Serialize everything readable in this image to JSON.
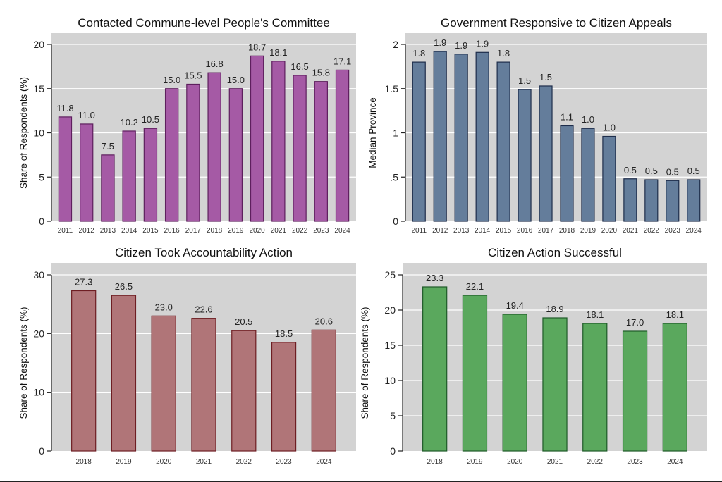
{
  "chart_data": [
    {
      "id": "commune",
      "type": "bar",
      "title": "Contacted Commune-level People's Committee",
      "xlabel": "",
      "ylabel": "Share of Respondents (%)",
      "ylim": [
        0,
        20
      ],
      "yticks": [
        0,
        5,
        10,
        15,
        20
      ],
      "ytick_labels": [
        "0",
        "5",
        "10",
        "15",
        "20"
      ],
      "grid": true,
      "categories": [
        "2011",
        "2012",
        "2013",
        "2014",
        "2015",
        "2016",
        "2017",
        "2018",
        "2019",
        "2020",
        "2021",
        "2022",
        "2023",
        "2024"
      ],
      "values": [
        11.8,
        11.0,
        7.5,
        10.2,
        10.5,
        15.0,
        15.5,
        16.8,
        15.0,
        18.7,
        18.1,
        16.5,
        15.8,
        17.1
      ],
      "value_labels": [
        "11.8",
        "11.0",
        "7.5",
        "10.2",
        "10.5",
        "15.0",
        "15.5",
        "16.8",
        "15.0",
        "18.7",
        "18.1",
        "16.5",
        "15.8",
        "17.1"
      ],
      "fill": "#a55aa5",
      "stroke": "#5e1f5e"
    },
    {
      "id": "responsive",
      "type": "bar",
      "title": "Government Responsive to Citizen Appeals",
      "xlabel": "",
      "ylabel": "Median Province",
      "ylim": [
        0,
        2
      ],
      "yticks": [
        0,
        0.5,
        1,
        1.5,
        2
      ],
      "ytick_labels": [
        "0",
        ".5",
        "1",
        "1.5",
        "2"
      ],
      "grid": true,
      "categories": [
        "2011",
        "2012",
        "2013",
        "2014",
        "2015",
        "2016",
        "2017",
        "2018",
        "2019",
        "2020",
        "2021",
        "2022",
        "2023",
        "2024"
      ],
      "values": [
        1.8,
        1.92,
        1.89,
        1.91,
        1.8,
        1.49,
        1.53,
        1.08,
        1.05,
        0.96,
        0.48,
        0.47,
        0.46,
        0.47
      ],
      "value_labels": [
        "1.8",
        "1.9",
        "1.9",
        "1.9",
        "1.8",
        "1.5",
        "1.5",
        "1.1",
        "1.0",
        "1.0",
        "0.5",
        "0.5",
        "0.5",
        "0.5"
      ],
      "fill": "#647d9b",
      "stroke": "#1e2d4b"
    },
    {
      "id": "accountability",
      "type": "bar",
      "title": "Citizen Took Accountability Action",
      "xlabel": "",
      "ylabel": "Share of Respondents (%)",
      "ylim": [
        0,
        30
      ],
      "yticks": [
        0,
        10,
        20,
        30
      ],
      "ytick_labels": [
        "0",
        "10",
        "20",
        "30"
      ],
      "grid": true,
      "categories": [
        "2018",
        "2019",
        "2020",
        "2021",
        "2022",
        "2023",
        "2024"
      ],
      "values": [
        27.3,
        26.5,
        23.0,
        22.6,
        20.5,
        18.5,
        20.6
      ],
      "value_labels": [
        "27.3",
        "26.5",
        "23.0",
        "22.6",
        "20.5",
        "18.5",
        "20.6"
      ],
      "fill": "#b07578",
      "stroke": "#6e1e23"
    },
    {
      "id": "successful",
      "type": "bar",
      "title": "Citizen Action Successful",
      "xlabel": "",
      "ylabel": "Share of Respondents (%)",
      "ylim": [
        0,
        25
      ],
      "yticks": [
        0,
        5,
        10,
        15,
        20,
        25
      ],
      "ytick_labels": [
        "0",
        "5",
        "10",
        "15",
        "20",
        "25"
      ],
      "grid": true,
      "categories": [
        "2018",
        "2019",
        "2020",
        "2021",
        "2022",
        "2023",
        "2024"
      ],
      "values": [
        23.3,
        22.1,
        19.4,
        18.9,
        18.1,
        17.0,
        18.1
      ],
      "value_labels": [
        "23.3",
        "22.1",
        "19.4",
        "18.9",
        "18.1",
        "17.0",
        "18.1"
      ],
      "fill": "#5aa85d",
      "stroke": "#1e5a28"
    }
  ],
  "colors": {
    "plot_background": "#d3d3d3",
    "gridline": "#ffffff",
    "axis": "#222222"
  }
}
